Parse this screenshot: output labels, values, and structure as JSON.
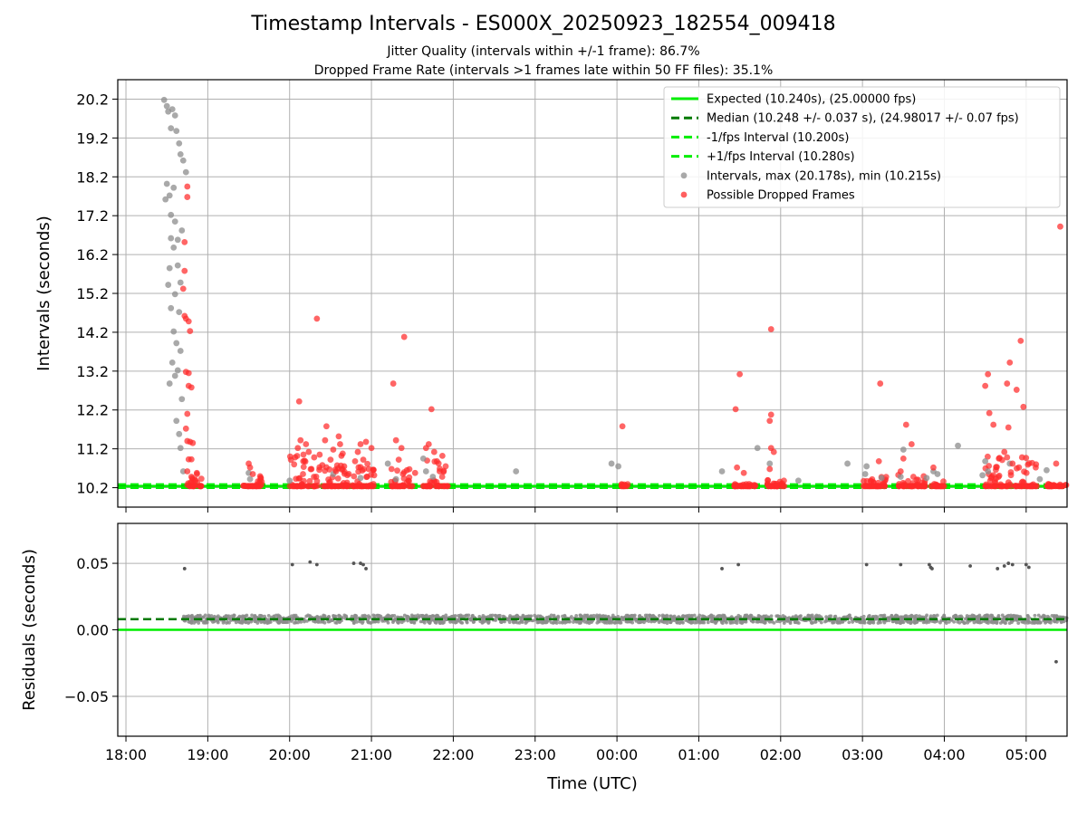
{
  "title": "Timestamp Intervals - ES000X_20250923_182554_009418",
  "subtitle_lines": [
    "Jitter Quality (intervals within +/-1 frame): 86.7%",
    "Dropped Frame Rate (intervals >1 frames late within 50 FF files): 35.1%"
  ],
  "colors": {
    "expected": "#00ee00",
    "median": "#007a00",
    "interval_bounds": "#00ee00",
    "intervals": "#8c8c8c",
    "dropped": "#ff2a2a",
    "residuals": "#555555",
    "grid": "#b0b0b0"
  },
  "chart_data": [
    {
      "type": "scatter",
      "panel": "top",
      "ylabel": "Intervals (seconds)",
      "yticks": [
        10.2,
        11.2,
        12.2,
        13.2,
        14.2,
        15.2,
        16.2,
        17.2,
        18.2,
        19.2,
        20.2
      ],
      "ylim": [
        9.7,
        20.7
      ],
      "xlim_hours": [
        -0.1,
        11.5
      ],
      "grid": true,
      "legend_position": "top-right",
      "reference_lines": [
        {
          "label": "Expected (10.240s), (25.00000 fps)",
          "y": 10.24,
          "style": "solid",
          "color": "#00ee00"
        },
        {
          "label": "Median (10.248 +/- 0.037 s), (24.98017 +/- 0.07 fps)",
          "y": 10.248,
          "style": "dashed",
          "color": "#007a00"
        },
        {
          "label": "-1/fps Interval (10.200s)",
          "y": 10.2,
          "style": "dashed",
          "color": "#00ee00"
        },
        {
          "label": "+1/fps Interval (10.280s)",
          "y": 10.28,
          "style": "dashed",
          "color": "#00ee00"
        }
      ],
      "series": [
        {
          "name": "Intervals, max (20.178s), min (10.215s)",
          "marker": "circle",
          "points": [
            [
              "18:28",
              20.18
            ],
            [
              "18:30",
              20.02
            ],
            [
              "18:31",
              19.88
            ],
            [
              "18:33",
              19.45
            ],
            [
              "18:34",
              19.94
            ],
            [
              "18:36",
              19.78
            ],
            [
              "18:37",
              19.38
            ],
            [
              "18:39",
              19.06
            ],
            [
              "18:40",
              18.78
            ],
            [
              "18:42",
              18.62
            ],
            [
              "18:44",
              18.32
            ],
            [
              "18:30",
              18.02
            ],
            [
              "18:32",
              17.72
            ],
            [
              "18:35",
              17.92
            ],
            [
              "18:29",
              17.62
            ],
            [
              "18:33",
              17.22
            ],
            [
              "18:36",
              17.05
            ],
            [
              "18:38",
              16.58
            ],
            [
              "18:33",
              16.62
            ],
            [
              "18:41",
              16.82
            ],
            [
              "18:35",
              16.38
            ],
            [
              "18:38",
              15.92
            ],
            [
              "18:32",
              15.85
            ],
            [
              "18:40",
              15.48
            ],
            [
              "18:36",
              15.18
            ],
            [
              "18:31",
              15.42
            ],
            [
              "18:33",
              14.82
            ],
            [
              "18:39",
              14.72
            ],
            [
              "18:35",
              14.22
            ],
            [
              "18:37",
              13.92
            ],
            [
              "18:40",
              13.72
            ],
            [
              "18:34",
              13.42
            ],
            [
              "18:38",
              13.22
            ],
            [
              "18:36",
              13.08
            ],
            [
              "18:32",
              12.88
            ],
            [
              "18:41",
              12.48
            ],
            [
              "18:37",
              11.92
            ],
            [
              "18:39",
              11.58
            ],
            [
              "18:40",
              11.22
            ],
            [
              "18:42",
              10.62
            ],
            [
              "19:30",
              10.58
            ],
            [
              "19:31",
              10.42
            ],
            [
              "20:00",
              10.38
            ],
            [
              "20:32",
              10.55
            ],
            [
              "20:52",
              10.45
            ],
            [
              "21:12",
              10.82
            ],
            [
              "21:18",
              10.42
            ],
            [
              "21:38",
              10.95
            ],
            [
              "21:40",
              10.62
            ],
            [
              "21:45",
              10.48
            ],
            [
              "22:46",
              10.62
            ],
            [
              "23:56",
              10.82
            ],
            [
              "00:01",
              10.75
            ],
            [
              "01:17",
              10.62
            ],
            [
              "01:43",
              11.22
            ],
            [
              "01:52",
              10.82
            ],
            [
              "02:13",
              10.38
            ],
            [
              "02:49",
              10.82
            ],
            [
              "03:02",
              10.55
            ],
            [
              "03:03",
              10.75
            ],
            [
              "03:14",
              10.45
            ],
            [
              "03:28",
              10.48
            ],
            [
              "03:30",
              11.18
            ],
            [
              "03:47",
              10.45
            ],
            [
              "03:52",
              10.62
            ],
            [
              "03:55",
              10.55
            ],
            [
              "04:10",
              11.28
            ],
            [
              "04:28",
              10.52
            ],
            [
              "04:30",
              10.88
            ],
            [
              "04:32",
              10.62
            ],
            [
              "04:48",
              10.82
            ],
            [
              "05:10",
              10.42
            ],
            [
              "05:15",
              10.65
            ]
          ]
        },
        {
          "name": "Possible Dropped Frames",
          "marker": "circle",
          "points": [
            [
              "18:45",
              17.95
            ],
            [
              "18:45",
              17.68
            ],
            [
              "18:43",
              16.52
            ],
            [
              "18:43",
              15.78
            ],
            [
              "18:42",
              15.32
            ],
            [
              "18:43",
              14.62
            ],
            [
              "18:44",
              14.55
            ],
            [
              "18:46",
              14.48
            ],
            [
              "18:47",
              14.23
            ],
            [
              "18:44",
              13.18
            ],
            [
              "18:46",
              13.15
            ],
            [
              "18:46",
              12.82
            ],
            [
              "18:48",
              12.78
            ],
            [
              "18:45",
              12.1
            ],
            [
              "18:44",
              11.72
            ],
            [
              "18:45",
              11.4
            ],
            [
              "18:47",
              11.38
            ],
            [
              "18:49",
              11.35
            ],
            [
              "18:46",
              10.93
            ],
            [
              "18:48",
              10.93
            ],
            [
              "18:45",
              10.62
            ],
            [
              "18:52",
              10.58
            ],
            [
              "18:48",
              10.48
            ],
            [
              "19:30",
              10.82
            ],
            [
              "19:31",
              10.72
            ],
            [
              "19:33",
              10.55
            ],
            [
              "20:04",
              10.98
            ],
            [
              "20:06",
              11.22
            ],
            [
              "20:07",
              12.42
            ],
            [
              "20:08",
              11.42
            ],
            [
              "20:10",
              10.88
            ],
            [
              "20:12",
              11.32
            ],
            [
              "20:14",
              11.12
            ],
            [
              "20:16",
              10.68
            ],
            [
              "20:18",
              10.98
            ],
            [
              "20:20",
              14.55
            ],
            [
              "20:22",
              11.05
            ],
            [
              "20:24",
              10.78
            ],
            [
              "20:26",
              11.42
            ],
            [
              "20:27",
              11.78
            ],
            [
              "20:30",
              10.92
            ],
            [
              "20:32",
              11.18
            ],
            [
              "20:34",
              10.62
            ],
            [
              "20:36",
              11.52
            ],
            [
              "20:37",
              11.32
            ],
            [
              "20:38",
              11.02
            ],
            [
              "20:40",
              10.75
            ],
            [
              "20:48",
              10.88
            ],
            [
              "20:50",
              11.12
            ],
            [
              "20:52",
              11.32
            ],
            [
              "20:54",
              10.92
            ],
            [
              "20:56",
              11.38
            ],
            [
              "20:58",
              10.68
            ],
            [
              "21:00",
              11.22
            ],
            [
              "21:02",
              10.52
            ],
            [
              "21:16",
              12.88
            ],
            [
              "21:18",
              11.42
            ],
            [
              "21:20",
              10.92
            ],
            [
              "21:22",
              11.22
            ],
            [
              "21:24",
              14.08
            ],
            [
              "21:26",
              10.65
            ],
            [
              "21:32",
              10.58
            ],
            [
              "21:40",
              11.22
            ],
            [
              "21:42",
              11.32
            ],
            [
              "21:44",
              12.22
            ],
            [
              "21:46",
              11.12
            ],
            [
              "21:48",
              10.88
            ],
            [
              "21:50",
              10.62
            ],
            [
              "21:52",
              11.02
            ],
            [
              "00:04",
              11.78
            ],
            [
              "01:27",
              12.22
            ],
            [
              "01:30",
              13.12
            ],
            [
              "01:28",
              10.72
            ],
            [
              "01:33",
              10.58
            ],
            [
              "01:53",
              14.28
            ],
            [
              "01:53",
              12.08
            ],
            [
              "01:52",
              11.92
            ],
            [
              "01:53",
              11.22
            ],
            [
              "01:55",
              11.12
            ],
            [
              "01:52",
              10.68
            ],
            [
              "03:12",
              10.88
            ],
            [
              "03:13",
              12.88
            ],
            [
              "03:28",
              10.62
            ],
            [
              "03:30",
              10.95
            ],
            [
              "03:32",
              11.82
            ],
            [
              "03:36",
              11.32
            ],
            [
              "03:52",
              10.72
            ],
            [
              "04:30",
              12.82
            ],
            [
              "04:32",
              13.12
            ],
            [
              "04:33",
              12.12
            ],
            [
              "04:36",
              11.82
            ],
            [
              "04:40",
              10.95
            ],
            [
              "04:44",
              11.12
            ],
            [
              "04:46",
              12.88
            ],
            [
              "04:48",
              13.42
            ],
            [
              "04:47",
              11.75
            ],
            [
              "04:50",
              10.82
            ],
            [
              "04:53",
              12.72
            ],
            [
              "04:56",
              13.98
            ],
            [
              "04:58",
              12.28
            ],
            [
              "04:57",
              10.98
            ],
            [
              "05:22",
              10.82
            ],
            [
              "05:25",
              16.92
            ]
          ]
        }
      ],
      "dense_clusters": [
        {
          "color_series": "Possible Dropped Frames",
          "start": "18:45",
          "end": "18:56",
          "y_max": 10.62
        },
        {
          "color_series": "Possible Dropped Frames",
          "start": "19:26",
          "end": "19:40",
          "y_max": 10.5
        },
        {
          "color_series": "Possible Dropped Frames",
          "start": "20:00",
          "end": "20:44",
          "y_max": 11.1
        },
        {
          "color_series": "Possible Dropped Frames",
          "start": "20:46",
          "end": "21:04",
          "y_max": 10.9
        },
        {
          "color_series": "Possible Dropped Frames",
          "start": "21:14",
          "end": "21:30",
          "y_max": 10.7
        },
        {
          "color_series": "Possible Dropped Frames",
          "start": "21:38",
          "end": "21:56",
          "y_max": 10.9
        },
        {
          "color_series": "Possible Dropped Frames",
          "start": "00:02",
          "end": "00:08",
          "y_max": 10.3
        },
        {
          "color_series": "Possible Dropped Frames",
          "start": "01:26",
          "end": "01:42",
          "y_max": 10.3
        },
        {
          "color_series": "Possible Dropped Frames",
          "start": "01:50",
          "end": "02:04",
          "y_max": 10.4
        },
        {
          "color_series": "Possible Dropped Frames",
          "start": "03:00",
          "end": "03:18",
          "y_max": 10.5
        },
        {
          "color_series": "Possible Dropped Frames",
          "start": "03:26",
          "end": "03:46",
          "y_max": 10.6
        },
        {
          "color_series": "Possible Dropped Frames",
          "start": "03:50",
          "end": "04:00",
          "y_max": 10.4
        },
        {
          "color_series": "Possible Dropped Frames",
          "start": "04:30",
          "end": "05:08",
          "y_max": 11.0
        },
        {
          "color_series": "Possible Dropped Frames",
          "start": "05:14",
          "end": "05:30",
          "y_max": 10.3
        }
      ]
    },
    {
      "type": "scatter",
      "panel": "bottom",
      "ylabel": "Residuals (seconds)",
      "xlabel": "Time (UTC)",
      "ylim": [
        -0.08,
        0.08
      ],
      "yticks": [
        0.05,
        0.0,
        -0.05
      ],
      "ytick_labels": [
        "0.05",
        "0.00",
        "−0.05"
      ],
      "xticks": [
        "18:00",
        "19:00",
        "20:00",
        "21:00",
        "22:00",
        "23:00",
        "00:00",
        "01:00",
        "02:00",
        "03:00",
        "04:00",
        "05:00"
      ],
      "xlim_hours": [
        -0.1,
        11.5
      ],
      "grid": true,
      "reference_lines": [
        {
          "label": "zero",
          "y": 0.0,
          "style": "solid",
          "color": "#00ee00"
        },
        {
          "label": "median",
          "y": 0.008,
          "style": "dashed",
          "color": "#007a00"
        }
      ],
      "band": {
        "start": "18:42",
        "end": "05:30",
        "y_center": 0.008,
        "spread": 0.003
      },
      "outliers": [
        [
          "18:43",
          0.046
        ],
        [
          "20:02",
          0.049
        ],
        [
          "20:15",
          0.051
        ],
        [
          "20:20",
          0.049
        ],
        [
          "20:47",
          0.05
        ],
        [
          "20:52",
          0.05
        ],
        [
          "20:54",
          0.049
        ],
        [
          "20:56",
          0.046
        ],
        [
          "01:17",
          0.046
        ],
        [
          "01:29",
          0.049
        ],
        [
          "03:03",
          0.049
        ],
        [
          "03:28",
          0.049
        ],
        [
          "03:49",
          0.049
        ],
        [
          "03:50",
          0.047
        ],
        [
          "03:51",
          0.046
        ],
        [
          "04:19",
          0.048
        ],
        [
          "04:39",
          0.046
        ],
        [
          "04:44",
          0.048
        ],
        [
          "04:47",
          0.05
        ],
        [
          "04:50",
          0.049
        ],
        [
          "05:00",
          0.049
        ],
        [
          "05:02",
          0.047
        ],
        [
          "05:22",
          -0.024
        ]
      ]
    }
  ]
}
